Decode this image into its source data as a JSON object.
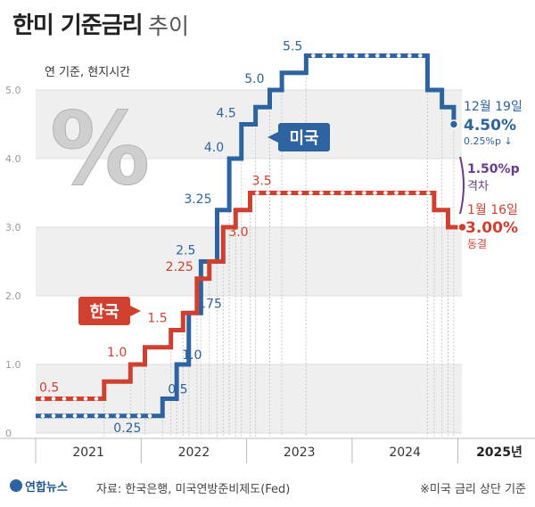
{
  "title": "한미 기준금리",
  "subtitle": "추이",
  "source": "자료: 한국은행, 미국연방준비제도(Fed)",
  "note": "※미국 금리 상단 기준",
  "logo": "연합뉴스",
  "colors": {
    "us": "#2c63a0",
    "kr": "#d0402e",
    "gap": "#6a3a8a"
  },
  "chart_data": {
    "type": "line",
    "step": true,
    "unit_caption": "연 기준, 현지시간",
    "ylim": [
      0,
      5.5
    ],
    "yticks": [
      0,
      1.0,
      2.0,
      3.0,
      4.0,
      5.0
    ],
    "xlim": [
      "2021-01-01",
      "2025-01-15"
    ],
    "x_tick_labels": [
      "2021",
      "2022",
      "2023",
      "2024",
      "2025년"
    ],
    "percent_symbol": "%",
    "series": [
      {
        "name": "미국",
        "key": "us",
        "points": [
          [
            "2021-01-01",
            0.25
          ],
          [
            "2022-03-16",
            0.5
          ],
          [
            "2022-05-04",
            1.0
          ],
          [
            "2022-06-15",
            1.75
          ],
          [
            "2022-07-27",
            2.5
          ],
          [
            "2022-09-21",
            3.25
          ],
          [
            "2022-11-02",
            4.0
          ],
          [
            "2022-12-14",
            4.5
          ],
          [
            "2023-02-01",
            4.75
          ],
          [
            "2023-03-22",
            5.0
          ],
          [
            "2023-05-03",
            5.25
          ],
          [
            "2023-07-26",
            5.5
          ],
          [
            "2024-09-18",
            5.0
          ],
          [
            "2024-11-07",
            4.75
          ],
          [
            "2024-12-18",
            4.5
          ],
          [
            "2025-01-01",
            4.5
          ]
        ],
        "labels": [
          {
            "date": "2021-09-15",
            "value": 0.25,
            "text": "0.25"
          },
          {
            "date": "2022-03-16",
            "value": 0.5,
            "text": "0.5"
          },
          {
            "date": "2022-05-04",
            "value": 1.0,
            "text": "1.0"
          },
          {
            "date": "2022-06-15",
            "value": 1.75,
            "text": "1.75"
          },
          {
            "date": "2022-07-27",
            "value": 2.5,
            "text": "2.5"
          },
          {
            "date": "2022-09-21",
            "value": 3.25,
            "text": "3.25"
          },
          {
            "date": "2022-11-02",
            "value": 4.0,
            "text": "4.0"
          },
          {
            "date": "2022-12-14",
            "value": 4.5,
            "text": "4.5"
          },
          {
            "date": "2023-03-22",
            "value": 5.0,
            "text": "5.0"
          },
          {
            "date": "2023-07-26",
            "value": 5.5,
            "text": "5.5"
          }
        ],
        "end_date_label": "12월 19일",
        "end_value_label": "4.50%",
        "end_change_label": "0.25%p ↓"
      },
      {
        "name": "한국",
        "key": "kr",
        "points": [
          [
            "2021-01-01",
            0.5
          ],
          [
            "2021-08-26",
            0.75
          ],
          [
            "2021-11-25",
            1.0
          ],
          [
            "2022-01-14",
            1.25
          ],
          [
            "2022-04-14",
            1.5
          ],
          [
            "2022-05-26",
            1.75
          ],
          [
            "2022-07-13",
            2.25
          ],
          [
            "2022-08-25",
            2.5
          ],
          [
            "2022-10-12",
            3.0
          ],
          [
            "2022-11-24",
            3.25
          ],
          [
            "2023-01-13",
            3.5
          ],
          [
            "2024-10-11",
            3.25
          ],
          [
            "2024-11-28",
            3.0
          ],
          [
            "2025-01-01",
            3.0
          ]
        ],
        "labels": [
          {
            "date": "2021-01-01",
            "value": 0.5,
            "text": "0.5"
          },
          {
            "date": "2021-11-25",
            "value": 1.0,
            "text": "1.0"
          },
          {
            "date": "2022-04-14",
            "value": 1.5,
            "text": "1.5"
          },
          {
            "date": "2022-07-13",
            "value": 2.25,
            "text": "2.25"
          },
          {
            "date": "2022-10-12",
            "value": 3.0,
            "text": "3.0"
          },
          {
            "date": "2023-01-13",
            "value": 3.5,
            "text": "3.5"
          }
        ],
        "end_date_label": "1월 16일",
        "end_value_label": "3.00%",
        "end_change_label": "동결"
      }
    ],
    "gap_value_label": "1.50%p",
    "gap_caption": "격차"
  }
}
